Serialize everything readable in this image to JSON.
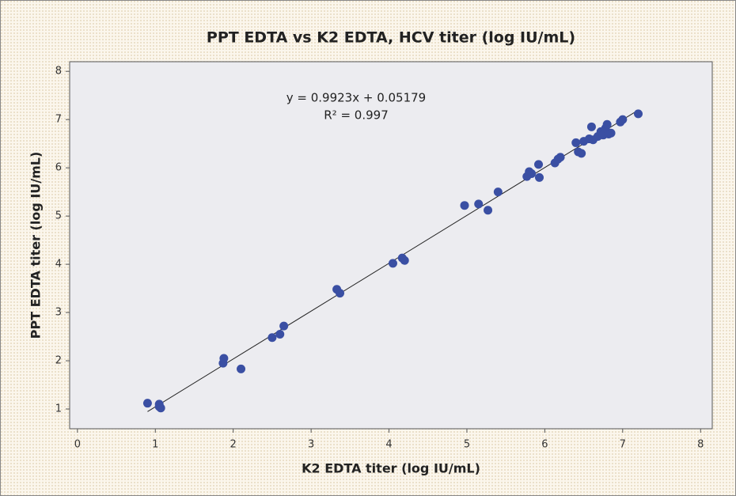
{
  "chart_data": {
    "type": "scatter",
    "title": "PPT EDTA vs K2 EDTA, HCV titer (log IU/mL)",
    "x_label": "K2 EDTA titer (log IU/mL)",
    "y_label": "PPT EDTA titer (log IU/mL)",
    "trendline": {
      "label": "y = 0.9923x + 0.05179",
      "slope": 0.9923,
      "intercept": 0.05179,
      "r2_label": "R² = 0.997"
    },
    "color": "#3a4fa3",
    "x": [
      0.9,
      1.05,
      1.07,
      1.05,
      1.87,
      1.88,
      2.1,
      2.5,
      2.6,
      2.65,
      3.33,
      3.37,
      4.05,
      4.17,
      4.2,
      4.97,
      5.15,
      5.27,
      5.4,
      5.77,
      5.8,
      5.83,
      5.92,
      5.93,
      6.13,
      6.17,
      6.2,
      6.4,
      6.43,
      6.47,
      6.5,
      6.57,
      6.6,
      6.62,
      6.68,
      6.72,
      6.75,
      6.78,
      6.8,
      6.82,
      6.85,
      6.97,
      7.0,
      7.2
    ],
    "values": [
      1.12,
      1.05,
      1.02,
      1.1,
      1.95,
      2.05,
      1.83,
      2.48,
      2.55,
      2.72,
      3.48,
      3.4,
      4.02,
      4.13,
      4.08,
      5.22,
      5.25,
      5.12,
      5.5,
      5.82,
      5.92,
      5.88,
      6.07,
      5.8,
      6.1,
      6.18,
      6.22,
      6.52,
      6.33,
      6.3,
      6.55,
      6.6,
      6.85,
      6.58,
      6.65,
      6.75,
      6.68,
      6.82,
      6.9,
      6.7,
      6.72,
      6.95,
      7.0,
      7.12
    ],
    "xlim": [
      -0.1,
      8.15
    ],
    "ylim": [
      0.59,
      8.2
    ],
    "xticks": [
      0,
      1,
      2,
      3,
      4,
      5,
      6,
      7,
      8
    ],
    "yticks": [
      1,
      2,
      3,
      4,
      5,
      6,
      7,
      8
    ]
  }
}
